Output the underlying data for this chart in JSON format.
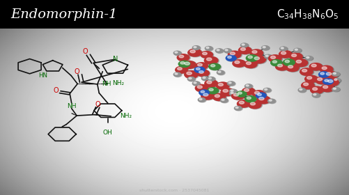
{
  "title": "Endomorphin-1",
  "formula_latex": "$\\mathregular{C_{34}H_{38}N_6O_5}$",
  "header_bg": "#000000",
  "header_text_color": "#ffffff",
  "watermark": "shutterstock.com · 2537045081",
  "atom_red": "#b83232",
  "atom_green": "#3a8a3a",
  "atom_blue": "#2255bb",
  "atom_gray": "#909090",
  "bond_color": "#111111",
  "label_O": "#cc0000",
  "label_N": "#006600",
  "label_black": "#111111",
  "bg_left": "#c0c0c0",
  "bg_mid": "#f5f5f5",
  "bg_right": "#e0e0e0"
}
